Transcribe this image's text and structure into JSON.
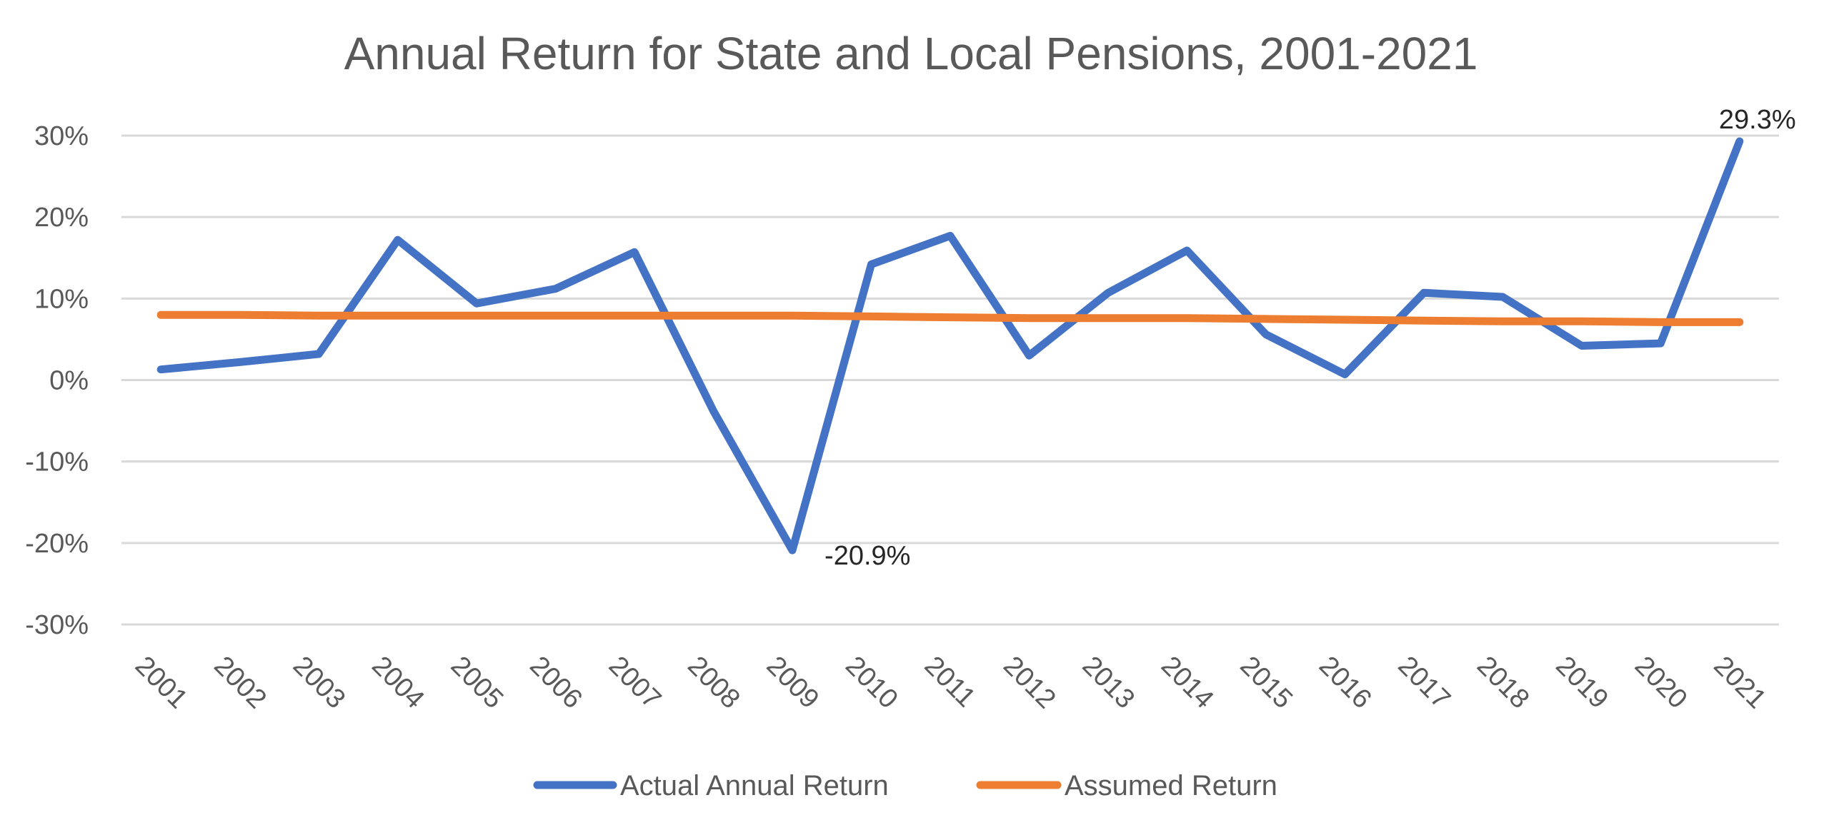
{
  "chart_data": {
    "type": "line",
    "title": "Annual Return for State and Local Pensions, 2001-2021",
    "xlabel": "",
    "ylabel": "",
    "categories": [
      "2001",
      "2002",
      "2003",
      "2004",
      "2005",
      "2006",
      "2007",
      "2008",
      "2009",
      "2010",
      "2011",
      "2012",
      "2013",
      "2014",
      "2015",
      "2016",
      "2017",
      "2018",
      "2019",
      "2020",
      "2021"
    ],
    "ylim": [
      -30,
      30
    ],
    "yticks": [
      30,
      20,
      10,
      0,
      -10,
      -20,
      -30
    ],
    "ytick_labels": [
      "30%",
      "20%",
      "10%",
      "0%",
      "-10%",
      "-20%",
      "-30%"
    ],
    "grid": true,
    "legend_position": "bottom",
    "series": [
      {
        "name": "Actual Annual Return",
        "color": "#4472c4",
        "values": [
          1.3,
          2.2,
          3.2,
          17.2,
          9.4,
          11.2,
          15.7,
          -3.8,
          -20.9,
          14.2,
          17.7,
          3.0,
          10.7,
          15.9,
          5.6,
          0.7,
          10.7,
          10.2,
          4.2,
          4.5,
          29.3
        ]
      },
      {
        "name": "Assumed Return",
        "color": "#ed7d31",
        "values": [
          8.0,
          8.0,
          7.9,
          7.9,
          7.9,
          7.9,
          7.9,
          7.9,
          7.9,
          7.8,
          7.7,
          7.6,
          7.6,
          7.6,
          7.5,
          7.4,
          7.3,
          7.2,
          7.2,
          7.1,
          7.1
        ]
      }
    ],
    "annotations": [
      {
        "text": "29.3%",
        "series": 0,
        "index": 20
      },
      {
        "text": "-20.9%",
        "series": 0,
        "index": 8
      }
    ]
  }
}
